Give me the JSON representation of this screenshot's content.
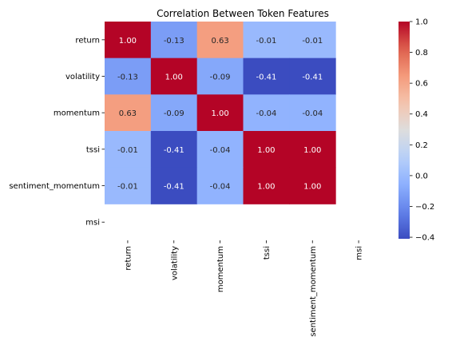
{
  "chart_data": {
    "type": "heatmap",
    "title": "Correlation Between Token Features",
    "row_labels": [
      "return",
      "volatility",
      "momentum",
      "tssi",
      "sentiment_momentum",
      "msi"
    ],
    "col_labels": [
      "return",
      "volatility",
      "momentum",
      "tssi",
      "sentiment_momentum",
      "msi"
    ],
    "values": [
      [
        1.0,
        -0.13,
        0.63,
        -0.01,
        -0.01,
        null
      ],
      [
        -0.13,
        1.0,
        -0.09,
        -0.41,
        -0.41,
        null
      ],
      [
        0.63,
        -0.09,
        1.0,
        -0.04,
        -0.04,
        null
      ],
      [
        -0.01,
        -0.41,
        -0.04,
        1.0,
        1.0,
        null
      ],
      [
        -0.01,
        -0.41,
        -0.04,
        1.0,
        1.0,
        null
      ],
      [
        null,
        null,
        null,
        null,
        null,
        null
      ]
    ],
    "colormap": "coolwarm",
    "colorbar": {
      "range": [
        -0.41,
        1.0
      ],
      "ticks": [
        1.0,
        0.8,
        0.6,
        0.4,
        0.2,
        0.0,
        -0.2,
        -0.4
      ],
      "tick_labels": [
        "1.0",
        "0.8",
        "0.6",
        "0.4",
        "0.2",
        "0.0",
        "−0.2",
        "−0.4"
      ]
    },
    "annotations": true,
    "annotation_format": "0.00"
  }
}
